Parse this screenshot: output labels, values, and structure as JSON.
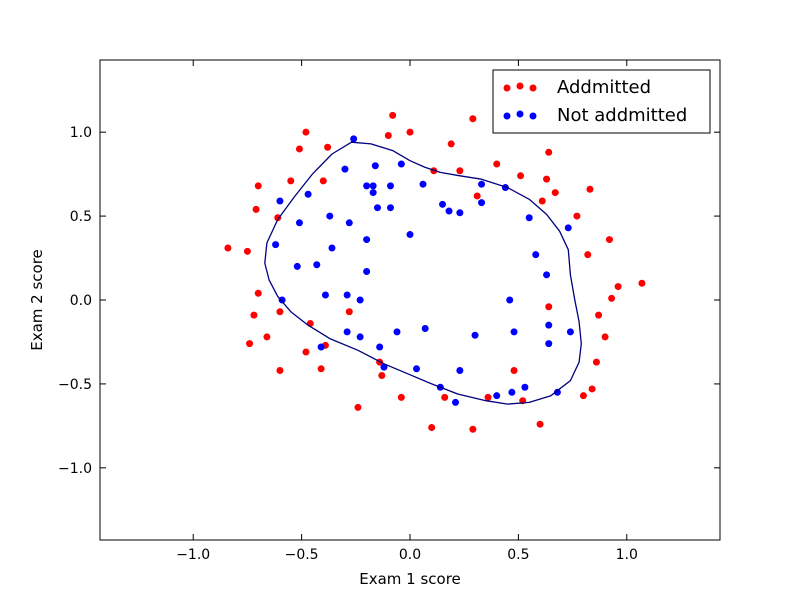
{
  "chart_data": {
    "type": "scatter",
    "title": "",
    "xlabel": "Exam 1 score",
    "ylabel": "Exam 2 score",
    "xlim": [
      -1.43,
      1.43
    ],
    "ylim": [
      -1.43,
      1.43
    ],
    "xticks": [
      {
        "value": -1.0,
        "label": "−1.0"
      },
      {
        "value": -0.5,
        "label": "−0.5"
      },
      {
        "value": 0.0,
        "label": "0.0"
      },
      {
        "value": 0.5,
        "label": "0.5"
      },
      {
        "value": 1.0,
        "label": "1.0"
      }
    ],
    "yticks": [
      {
        "value": -1.0,
        "label": "−1.0"
      },
      {
        "value": -0.5,
        "label": "−0.5"
      },
      {
        "value": 0.0,
        "label": "0.0"
      },
      {
        "value": 0.5,
        "label": "0.5"
      },
      {
        "value": 1.0,
        "label": "1.0"
      }
    ],
    "grid": false,
    "legend_position": "top-right",
    "series": [
      {
        "name": "Addmitted",
        "color": "#ff0000",
        "points": [
          [
            -0.84,
            0.31
          ],
          [
            -0.75,
            0.29
          ],
          [
            -0.71,
            0.54
          ],
          [
            -0.7,
            0.68
          ],
          [
            -0.7,
            0.04
          ],
          [
            -0.72,
            -0.09
          ],
          [
            -0.74,
            -0.26
          ],
          [
            -0.66,
            -0.22
          ],
          [
            -0.61,
            0.49
          ],
          [
            -0.6,
            -0.07
          ],
          [
            -0.6,
            -0.42
          ],
          [
            -0.55,
            0.71
          ],
          [
            -0.51,
            0.9
          ],
          [
            -0.48,
            1.0
          ],
          [
            -0.48,
            -0.31
          ],
          [
            -0.46,
            -0.14
          ],
          [
            -0.41,
            -0.41
          ],
          [
            -0.39,
            -0.27
          ],
          [
            -0.4,
            0.71
          ],
          [
            -0.38,
            0.91
          ],
          [
            -0.28,
            -0.07
          ],
          [
            -0.24,
            -0.64
          ],
          [
            -0.14,
            -0.37
          ],
          [
            -0.13,
            -0.45
          ],
          [
            -0.1,
            0.98
          ],
          [
            -0.08,
            1.1
          ],
          [
            -0.04,
            -0.58
          ],
          [
            0.0,
            1.0
          ],
          [
            0.1,
            -0.76
          ],
          [
            0.11,
            0.77
          ],
          [
            0.16,
            -0.58
          ],
          [
            0.19,
            0.93
          ],
          [
            0.23,
            0.77
          ],
          [
            0.29,
            1.08
          ],
          [
            0.29,
            -0.77
          ],
          [
            0.31,
            0.62
          ],
          [
            0.36,
            -0.58
          ],
          [
            0.4,
            0.81
          ],
          [
            0.48,
            -0.42
          ],
          [
            0.51,
            0.74
          ],
          [
            0.52,
            -0.6
          ],
          [
            0.6,
            -0.74
          ],
          [
            0.61,
            0.59
          ],
          [
            0.63,
            0.72
          ],
          [
            0.64,
            0.88
          ],
          [
            0.64,
            -0.04
          ],
          [
            0.67,
            0.64
          ],
          [
            0.77,
            0.5
          ],
          [
            0.8,
            -0.57
          ],
          [
            0.82,
            0.27
          ],
          [
            0.83,
            0.66
          ],
          [
            0.84,
            -0.53
          ],
          [
            0.86,
            -0.37
          ],
          [
            0.87,
            -0.09
          ],
          [
            0.9,
            -0.22
          ],
          [
            0.92,
            0.36
          ],
          [
            0.93,
            0.01
          ],
          [
            0.96,
            0.08
          ],
          [
            1.07,
            0.1
          ]
        ]
      },
      {
        "name": "Not addmitted",
        "color": "#0000ff",
        "points": [
          [
            -0.62,
            0.33
          ],
          [
            -0.6,
            0.59
          ],
          [
            -0.59,
            0.0
          ],
          [
            -0.52,
            0.2
          ],
          [
            -0.51,
            0.46
          ],
          [
            -0.47,
            0.63
          ],
          [
            -0.43,
            0.21
          ],
          [
            -0.41,
            -0.28
          ],
          [
            -0.39,
            0.03
          ],
          [
            -0.37,
            0.5
          ],
          [
            -0.36,
            0.31
          ],
          [
            -0.3,
            0.78
          ],
          [
            -0.29,
            0.03
          ],
          [
            -0.29,
            -0.19
          ],
          [
            -0.28,
            0.46
          ],
          [
            -0.26,
            0.96
          ],
          [
            -0.23,
            0.0
          ],
          [
            -0.23,
            -0.22
          ],
          [
            -0.2,
            0.68
          ],
          [
            -0.2,
            0.36
          ],
          [
            -0.2,
            0.17
          ],
          [
            -0.17,
            0.64
          ],
          [
            -0.17,
            0.68
          ],
          [
            -0.16,
            0.8
          ],
          [
            -0.15,
            0.55
          ],
          [
            -0.14,
            -0.28
          ],
          [
            -0.12,
            -0.4
          ],
          [
            -0.09,
            0.55
          ],
          [
            -0.09,
            0.68
          ],
          [
            -0.06,
            -0.19
          ],
          [
            -0.04,
            0.81
          ],
          [
            0.0,
            0.39
          ],
          [
            0.03,
            -0.41
          ],
          [
            0.06,
            0.69
          ],
          [
            0.07,
            -0.17
          ],
          [
            0.14,
            -0.52
          ],
          [
            0.15,
            0.57
          ],
          [
            0.18,
            0.53
          ],
          [
            0.21,
            -0.61
          ],
          [
            0.23,
            0.52
          ],
          [
            0.23,
            -0.42
          ],
          [
            0.3,
            -0.21
          ],
          [
            0.33,
            0.69
          ],
          [
            0.33,
            0.58
          ],
          [
            0.4,
            -0.57
          ],
          [
            0.44,
            0.67
          ],
          [
            0.46,
            0.0
          ],
          [
            0.47,
            -0.55
          ],
          [
            0.48,
            -0.19
          ],
          [
            0.53,
            -0.52
          ],
          [
            0.55,
            0.49
          ],
          [
            0.58,
            0.27
          ],
          [
            0.63,
            0.15
          ],
          [
            0.64,
            -0.26
          ],
          [
            0.64,
            -0.15
          ],
          [
            0.68,
            -0.55
          ],
          [
            0.73,
            0.43
          ],
          [
            0.74,
            -0.19
          ]
        ]
      }
    ],
    "decision_boundary": {
      "color": "#000080",
      "closed": true,
      "points": [
        [
          -0.27,
          0.94
        ],
        [
          -0.18,
          0.93
        ],
        [
          -0.08,
          0.89
        ],
        [
          0.0,
          0.83
        ],
        [
          0.07,
          0.79
        ],
        [
          0.14,
          0.76
        ],
        [
          0.23,
          0.74
        ],
        [
          0.33,
          0.72
        ],
        [
          0.45,
          0.67
        ],
        [
          0.55,
          0.6
        ],
        [
          0.63,
          0.51
        ],
        [
          0.69,
          0.41
        ],
        [
          0.73,
          0.3
        ],
        [
          0.74,
          0.15
        ],
        [
          0.76,
          0.0
        ],
        [
          0.78,
          -0.13
        ],
        [
          0.79,
          -0.26
        ],
        [
          0.78,
          -0.37
        ],
        [
          0.74,
          -0.48
        ],
        [
          0.65,
          -0.57
        ],
        [
          0.55,
          -0.61
        ],
        [
          0.45,
          -0.62
        ],
        [
          0.35,
          -0.6
        ],
        [
          0.22,
          -0.56
        ],
        [
          0.1,
          -0.5
        ],
        [
          -0.01,
          -0.44
        ],
        [
          -0.12,
          -0.38
        ],
        [
          -0.24,
          -0.3
        ],
        [
          -0.37,
          -0.23
        ],
        [
          -0.47,
          -0.15
        ],
        [
          -0.55,
          -0.07
        ],
        [
          -0.61,
          0.02
        ],
        [
          -0.65,
          0.12
        ],
        [
          -0.67,
          0.22
        ],
        [
          -0.66,
          0.34
        ],
        [
          -0.61,
          0.48
        ],
        [
          -0.53,
          0.62
        ],
        [
          -0.45,
          0.75
        ],
        [
          -0.36,
          0.87
        ]
      ]
    }
  }
}
